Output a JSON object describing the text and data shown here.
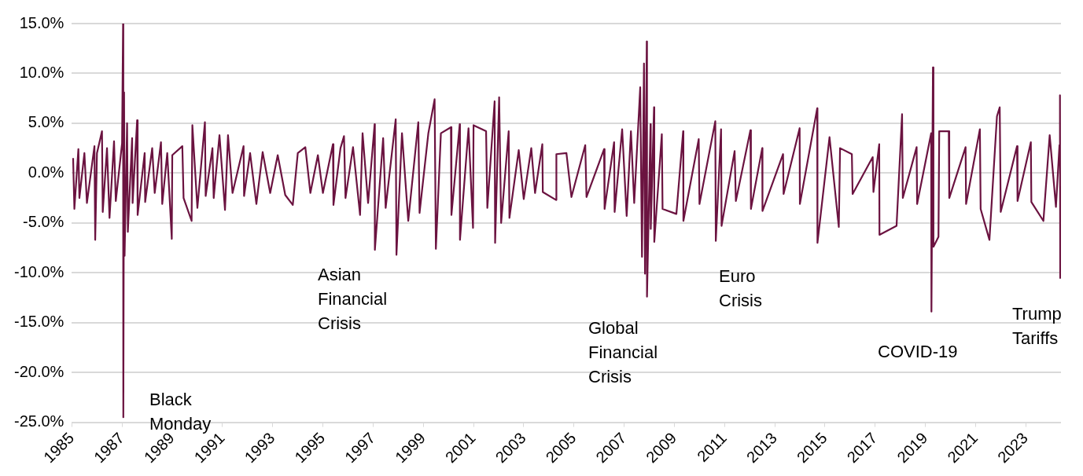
{
  "chart_data": {
    "type": "line",
    "xlim": [
      1985,
      2024.4
    ],
    "xticks": [
      1985,
      1987,
      1989,
      1991,
      1993,
      1995,
      1997,
      1999,
      2001,
      2003,
      2005,
      2007,
      2009,
      2011,
      2013,
      2015,
      2017,
      2019,
      2021,
      2023
    ],
    "ylim": [
      -25,
      15
    ],
    "yticks": [
      {
        "value": -25,
        "label": "-25.0%"
      },
      {
        "value": -20,
        "label": "-20.0%"
      },
      {
        "value": -15,
        "label": "-15.0%"
      },
      {
        "value": -10,
        "label": "-10.0%"
      },
      {
        "value": -5,
        "label": "-5.0%"
      },
      {
        "value": 0,
        "label": "0.0%"
      },
      {
        "value": 5,
        "label": "5.0%"
      },
      {
        "value": 10,
        "label": "10.0%"
      },
      {
        "value": 15,
        "label": "15.0%"
      }
    ],
    "grid": "y",
    "legend": false,
    "series": [
      {
        "color": "#6b1340",
        "x": [
          1985.05,
          1985.1,
          1985.26,
          1985.3,
          1985.5,
          1985.6,
          1985.9,
          1985.93,
          1986.0,
          1986.2,
          1986.23,
          1986.4,
          1986.5,
          1986.68,
          1986.75,
          1987.0,
          1987.04,
          1987.05,
          1987.08,
          1987.1,
          1987.2,
          1987.23,
          1987.4,
          1987.42,
          1987.6,
          1987.62,
          1987.9,
          1987.92,
          1988.2,
          1988.3,
          1988.55,
          1988.6,
          1988.8,
          1988.98,
          1989.0,
          1989.4,
          1989.45,
          1989.77,
          1989.8,
          1990.0,
          1990.3,
          1990.33,
          1990.6,
          1990.65,
          1990.88,
          1991.1,
          1991.22,
          1991.4,
          1991.84,
          1991.86,
          1992.1,
          1992.35,
          1992.6,
          1992.9,
          1993.2,
          1993.5,
          1993.8,
          1994.0,
          1994.3,
          1994.5,
          1994.8,
          1995.0,
          1995.4,
          1995.42,
          1995.7,
          1995.84,
          1995.9,
          1996.2,
          1996.48,
          1996.58,
          1996.8,
          1997.06,
          1997.07,
          1997.4,
          1997.5,
          1997.9,
          1997.93,
          1998.15,
          1998.4,
          1998.8,
          1998.85,
          1999.2,
          1999.45,
          1999.5,
          1999.7,
          2000.1,
          2000.12,
          2000.45,
          2000.46,
          2000.8,
          2000.98,
          2001.0,
          2001.5,
          2001.55,
          2001.84,
          2001.86,
          2002.02,
          2002.1,
          2002.4,
          2002.43,
          2002.8,
          2003.0,
          2003.3,
          2003.45,
          2003.74,
          2003.76,
          2004.29,
          2004.3,
          2004.7,
          2004.9,
          2005.45,
          2005.5,
          2006.2,
          2006.22,
          2006.6,
          2006.62,
          2006.92,
          2007.1,
          2007.27,
          2007.4,
          2007.64,
          2007.71,
          2007.79,
          2007.83,
          2007.9,
          2007.91,
          2008.05,
          2008.06,
          2008.19,
          2008.2,
          2008.5,
          2008.53,
          2009.08,
          2009.35,
          2009.36,
          2009.97,
          2010.0,
          2010.63,
          2010.65,
          2010.86,
          2010.88,
          2011.4,
          2011.45,
          2012.03,
          2012.05,
          2012.5,
          2012.51,
          2013.33,
          2013.35,
          2013.99,
          2014.0,
          2014.69,
          2014.7,
          2015.18,
          2015.55,
          2015.6,
          2016.07,
          2016.1,
          2016.9,
          2016.93,
          2017.16,
          2017.17,
          2017.85,
          2018.07,
          2018.1,
          2018.65,
          2018.67,
          2019.23,
          2019.24,
          2019.3,
          2019.32,
          2019.52,
          2019.55,
          2019.93,
          2019.95,
          2020.6,
          2020.62,
          2021.17,
          2021.2,
          2021.55,
          2021.85,
          2021.96,
          2022.0,
          2022.65,
          2022.67,
          2023.2,
          2023.22,
          2023.7,
          2023.95,
          2024.2,
          2024.34,
          2024.36,
          2024.37
        ],
        "values": [
          1.5,
          -3.6,
          2.4,
          -2.5,
          2.0,
          -3.0,
          2.7,
          -6.7,
          2.0,
          4.2,
          -3.9,
          2.5,
          -4.5,
          3.2,
          -2.8,
          3.0,
          15.0,
          -24.5,
          8.1,
          -8.3,
          5.0,
          -5.9,
          3.5,
          -3.0,
          5.3,
          -4.2,
          2.0,
          -2.9,
          2.5,
          -2.0,
          3.1,
          -3.1,
          2.0,
          -6.6,
          1.8,
          2.7,
          -2.5,
          -4.8,
          4.8,
          -3.5,
          5.1,
          -2.3,
          2.5,
          -2.5,
          3.8,
          -3.7,
          3.8,
          -2.0,
          2.7,
          -2.3,
          2.0,
          -3.1,
          2.1,
          -2.0,
          1.8,
          -2.2,
          -3.2,
          2.0,
          2.6,
          -2.0,
          1.8,
          -2.0,
          2.9,
          -3.2,
          2.5,
          3.7,
          -2.5,
          2.6,
          -4.2,
          4.0,
          -3.0,
          4.9,
          -7.7,
          3.5,
          -3.5,
          5.4,
          -8.2,
          4.0,
          -4.8,
          5.1,
          -4.0,
          4.0,
          7.4,
          -7.6,
          4.0,
          4.6,
          -4.2,
          4.9,
          -6.7,
          4.5,
          -5.5,
          4.8,
          4.2,
          -3.5,
          7.2,
          -7.0,
          7.6,
          -5.0,
          4.2,
          -4.5,
          2.3,
          -2.6,
          2.5,
          -2.0,
          2.9,
          -1.9,
          -2.7,
          1.9,
          2.0,
          -2.4,
          2.8,
          -2.4,
          2.4,
          -3.6,
          3.1,
          -3.9,
          4.4,
          -4.3,
          4.2,
          -3.0,
          8.6,
          -8.4,
          11.0,
          -10.1,
          13.2,
          -12.4,
          4.9,
          -5.6,
          6.6,
          -6.9,
          3.9,
          -3.6,
          -4.1,
          4.2,
          -4.8,
          3.4,
          -3.1,
          5.2,
          -6.8,
          4.4,
          -5.3,
          2.2,
          -2.8,
          4.3,
          -3.6,
          2.5,
          -3.8,
          1.9,
          -2.1,
          4.5,
          -3.1,
          6.5,
          -7.0,
          3.6,
          -5.4,
          2.5,
          1.9,
          -2.1,
          1.6,
          -1.9,
          2.9,
          -6.2,
          -5.3,
          5.9,
          -2.5,
          2.6,
          -3.1,
          4.0,
          -13.9,
          10.6,
          -7.4,
          -6.4,
          4.2,
          4.2,
          -2.5,
          2.6,
          -3.1,
          4.4,
          -3.6,
          -6.7,
          5.7,
          6.6,
          -3.9,
          2.7,
          -2.8,
          3.1,
          -2.9,
          -4.8,
          3.8,
          -3.4,
          2.8,
          7.8,
          -10.6
        ]
      }
    ],
    "annotations": [
      "Black\nMonday",
      "Asian\nFinancial\nCrisis",
      "Global\nFinancial\nCrisis",
      "Euro\nCrisis",
      "COVID-19",
      "Trump\nTariffs"
    ]
  }
}
